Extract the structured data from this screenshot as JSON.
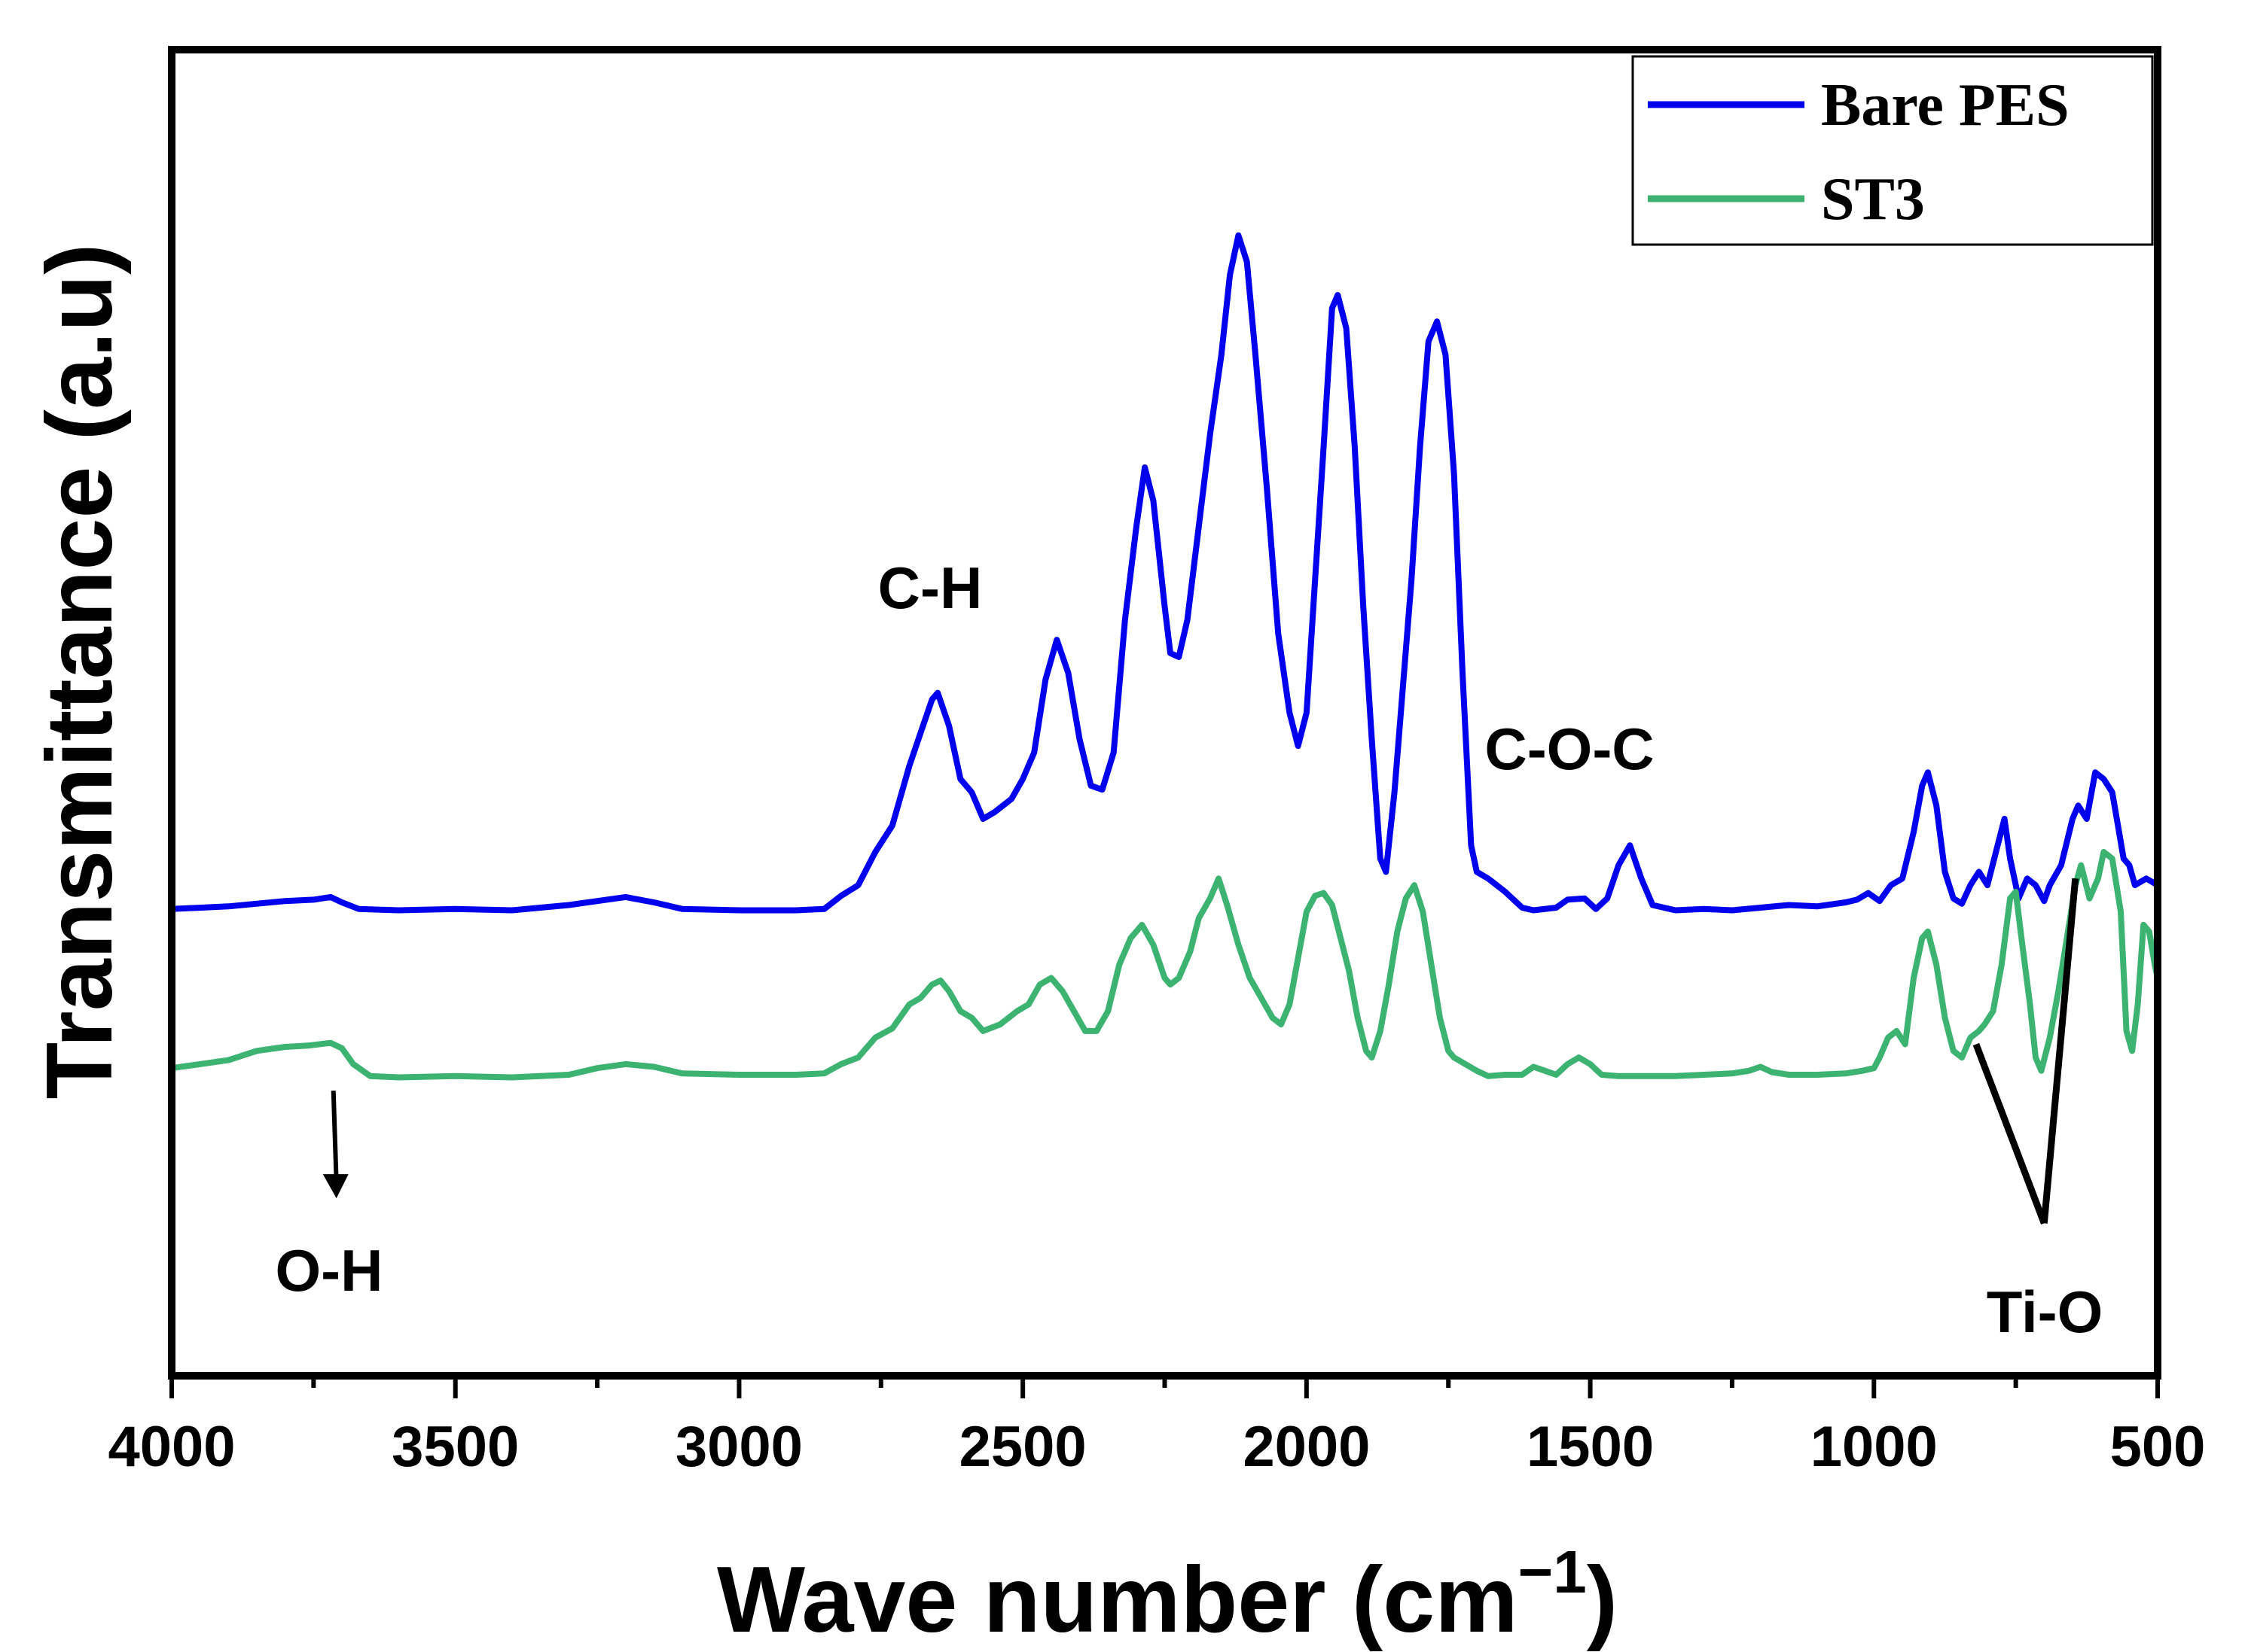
{
  "chart_data": {
    "type": "line",
    "title": "",
    "xlabel": "Wave number (cm",
    "xlabel_sup": "−1",
    "xlabel_close": ")",
    "ylabel": "Transmittance (a.u)",
    "xlim": [
      4000,
      500
    ],
    "ylim": [
      0,
      100
    ],
    "x_reversed": true,
    "y_ticks_shown": false,
    "xticks": [
      4000,
      3500,
      3000,
      2500,
      2000,
      1500,
      1000,
      500
    ],
    "xtick_labels": [
      "4000",
      "3500",
      "3000",
      "2500",
      "2000",
      "1500",
      "1000",
      "500"
    ],
    "legend_position": "top-right",
    "series": [
      {
        "name": "Bare PES",
        "color": "#0000ee",
        "points": [
          [
            4000,
            35.2
          ],
          [
            3900,
            35.4
          ],
          [
            3800,
            35.8
          ],
          [
            3750,
            35.9
          ],
          [
            3720,
            36.1
          ],
          [
            3700,
            35.7
          ],
          [
            3670,
            35.2
          ],
          [
            3600,
            35.1
          ],
          [
            3500,
            35.2
          ],
          [
            3400,
            35.1
          ],
          [
            3300,
            35.5
          ],
          [
            3250,
            35.8
          ],
          [
            3200,
            36.1
          ],
          [
            3150,
            35.7
          ],
          [
            3100,
            35.2
          ],
          [
            3000,
            35.1
          ],
          [
            2900,
            35.1
          ],
          [
            2850,
            35.2
          ],
          [
            2820,
            36.2
          ],
          [
            2790,
            37.0
          ],
          [
            2760,
            39.5
          ],
          [
            2730,
            41.5
          ],
          [
            2700,
            46.0
          ],
          [
            2680,
            48.5
          ],
          [
            2660,
            51.0
          ],
          [
            2650,
            51.5
          ],
          [
            2630,
            49.0
          ],
          [
            2610,
            45.0
          ],
          [
            2590,
            44.0
          ],
          [
            2570,
            42.0
          ],
          [
            2550,
            42.5
          ],
          [
            2520,
            43.5
          ],
          [
            2500,
            45.0
          ],
          [
            2480,
            47.0
          ],
          [
            2460,
            52.5
          ],
          [
            2440,
            55.5
          ],
          [
            2420,
            53.0
          ],
          [
            2400,
            48.0
          ],
          [
            2380,
            44.5
          ],
          [
            2360,
            44.2
          ],
          [
            2340,
            47.0
          ],
          [
            2320,
            57.0
          ],
          [
            2300,
            64.0
          ],
          [
            2285,
            68.5
          ],
          [
            2270,
            66.0
          ],
          [
            2250,
            58.0
          ],
          [
            2240,
            54.5
          ],
          [
            2225,
            54.2
          ],
          [
            2210,
            57.0
          ],
          [
            2190,
            64.0
          ],
          [
            2170,
            71.0
          ],
          [
            2150,
            77.0
          ],
          [
            2135,
            83.0
          ],
          [
            2120,
            86.0
          ],
          [
            2105,
            84.0
          ],
          [
            2090,
            77.0
          ],
          [
            2070,
            67.0
          ],
          [
            2050,
            56.0
          ],
          [
            2030,
            50.0
          ],
          [
            2015,
            47.5
          ],
          [
            2000,
            50.0
          ],
          [
            1985,
            60.0
          ],
          [
            1970,
            70.0
          ],
          [
            1955,
            80.5
          ],
          [
            1945,
            81.5
          ],
          [
            1930,
            79.0
          ],
          [
            1915,
            70.0
          ],
          [
            1900,
            58.0
          ],
          [
            1885,
            48.0
          ],
          [
            1870,
            39.0
          ],
          [
            1860,
            38.0
          ],
          [
            1845,
            44.0
          ],
          [
            1830,
            52.0
          ],
          [
            1815,
            60.0
          ],
          [
            1800,
            70.0
          ],
          [
            1785,
            78.0
          ],
          [
            1770,
            79.5
          ],
          [
            1755,
            77.0
          ],
          [
            1740,
            68.0
          ],
          [
            1725,
            53.0
          ],
          [
            1710,
            40.0
          ],
          [
            1700,
            38.0
          ],
          [
            1680,
            37.5
          ],
          [
            1650,
            36.5
          ],
          [
            1620,
            35.3
          ],
          [
            1600,
            35.1
          ],
          [
            1560,
            35.3
          ],
          [
            1540,
            35.9
          ],
          [
            1510,
            36.0
          ],
          [
            1490,
            35.2
          ],
          [
            1470,
            36.0
          ],
          [
            1450,
            38.5
          ],
          [
            1430,
            40.0
          ],
          [
            1410,
            37.5
          ],
          [
            1390,
            35.5
          ],
          [
            1350,
            35.1
          ],
          [
            1300,
            35.2
          ],
          [
            1250,
            35.1
          ],
          [
            1200,
            35.3
          ],
          [
            1150,
            35.5
          ],
          [
            1100,
            35.4
          ],
          [
            1050,
            35.7
          ],
          [
            1030,
            35.9
          ],
          [
            1010,
            36.4
          ],
          [
            990,
            35.8
          ],
          [
            970,
            37.0
          ],
          [
            950,
            37.5
          ],
          [
            930,
            41.0
          ],
          [
            915,
            44.5
          ],
          [
            905,
            45.5
          ],
          [
            890,
            43.0
          ],
          [
            875,
            38.0
          ],
          [
            860,
            36.0
          ],
          [
            845,
            35.6
          ],
          [
            830,
            37.0
          ],
          [
            815,
            38.0
          ],
          [
            800,
            37.0
          ],
          [
            785,
            39.5
          ],
          [
            770,
            42.0
          ],
          [
            760,
            39.0
          ],
          [
            745,
            36.0
          ],
          [
            730,
            37.5
          ],
          [
            715,
            37.0
          ],
          [
            700,
            35.8
          ],
          [
            690,
            37.0
          ],
          [
            670,
            38.5
          ],
          [
            650,
            42.0
          ],
          [
            640,
            43.0
          ],
          [
            625,
            42.0
          ],
          [
            610,
            45.5
          ],
          [
            595,
            45.0
          ],
          [
            580,
            44.0
          ],
          [
            570,
            41.5
          ],
          [
            560,
            39.0
          ],
          [
            550,
            38.5
          ],
          [
            540,
            37.0
          ],
          [
            520,
            37.5
          ],
          [
            500,
            37.0
          ]
        ]
      },
      {
        "name": "ST3",
        "color": "#3cb371",
        "points": [
          [
            4000,
            23.2
          ],
          [
            3950,
            23.5
          ],
          [
            3900,
            23.8
          ],
          [
            3850,
            24.5
          ],
          [
            3800,
            24.8
          ],
          [
            3760,
            24.9
          ],
          [
            3720,
            25.1
          ],
          [
            3700,
            24.7
          ],
          [
            3680,
            23.5
          ],
          [
            3650,
            22.6
          ],
          [
            3600,
            22.5
          ],
          [
            3500,
            22.6
          ],
          [
            3400,
            22.5
          ],
          [
            3300,
            22.7
          ],
          [
            3250,
            23.2
          ],
          [
            3200,
            23.5
          ],
          [
            3150,
            23.3
          ],
          [
            3100,
            22.8
          ],
          [
            3000,
            22.7
          ],
          [
            2900,
            22.7
          ],
          [
            2850,
            22.8
          ],
          [
            2820,
            23.5
          ],
          [
            2790,
            24.0
          ],
          [
            2760,
            25.5
          ],
          [
            2730,
            26.2
          ],
          [
            2700,
            28.0
          ],
          [
            2680,
            28.5
          ],
          [
            2660,
            29.5
          ],
          [
            2645,
            29.8
          ],
          [
            2630,
            29.0
          ],
          [
            2610,
            27.5
          ],
          [
            2590,
            27.0
          ],
          [
            2570,
            26.0
          ],
          [
            2540,
            26.5
          ],
          [
            2510,
            27.5
          ],
          [
            2490,
            28.0
          ],
          [
            2470,
            29.5
          ],
          [
            2450,
            30.0
          ],
          [
            2430,
            29.0
          ],
          [
            2410,
            27.5
          ],
          [
            2390,
            26.0
          ],
          [
            2370,
            26.0
          ],
          [
            2350,
            27.5
          ],
          [
            2330,
            31.0
          ],
          [
            2310,
            33.0
          ],
          [
            2290,
            34.0
          ],
          [
            2270,
            32.5
          ],
          [
            2250,
            30.0
          ],
          [
            2240,
            29.5
          ],
          [
            2225,
            30.0
          ],
          [
            2205,
            32.0
          ],
          [
            2190,
            34.5
          ],
          [
            2170,
            36.0
          ],
          [
            2155,
            37.5
          ],
          [
            2140,
            35.5
          ],
          [
            2120,
            32.5
          ],
          [
            2100,
            30.0
          ],
          [
            2080,
            28.5
          ],
          [
            2060,
            27.0
          ],
          [
            2045,
            26.5
          ],
          [
            2030,
            28.0
          ],
          [
            2015,
            31.5
          ],
          [
            2000,
            35.0
          ],
          [
            1985,
            36.2
          ],
          [
            1970,
            36.4
          ],
          [
            1955,
            35.5
          ],
          [
            1940,
            33.0
          ],
          [
            1925,
            30.5
          ],
          [
            1910,
            27.0
          ],
          [
            1895,
            24.5
          ],
          [
            1885,
            24.0
          ],
          [
            1870,
            26.0
          ],
          [
            1855,
            29.5
          ],
          [
            1840,
            33.5
          ],
          [
            1825,
            36.0
          ],
          [
            1810,
            37.0
          ],
          [
            1795,
            35.0
          ],
          [
            1780,
            31.0
          ],
          [
            1765,
            27.0
          ],
          [
            1750,
            24.5
          ],
          [
            1740,
            24.0
          ],
          [
            1720,
            23.5
          ],
          [
            1700,
            23.0
          ],
          [
            1680,
            22.6
          ],
          [
            1650,
            22.7
          ],
          [
            1620,
            22.7
          ],
          [
            1600,
            23.3
          ],
          [
            1580,
            23.0
          ],
          [
            1560,
            22.7
          ],
          [
            1540,
            23.5
          ],
          [
            1520,
            24.0
          ],
          [
            1500,
            23.5
          ],
          [
            1480,
            22.7
          ],
          [
            1450,
            22.6
          ],
          [
            1400,
            22.6
          ],
          [
            1350,
            22.6
          ],
          [
            1300,
            22.7
          ],
          [
            1250,
            22.8
          ],
          [
            1220,
            23.0
          ],
          [
            1200,
            23.3
          ],
          [
            1180,
            22.9
          ],
          [
            1150,
            22.7
          ],
          [
            1100,
            22.7
          ],
          [
            1050,
            22.8
          ],
          [
            1020,
            23.0
          ],
          [
            1000,
            23.2
          ],
          [
            990,
            24.0
          ],
          [
            975,
            25.5
          ],
          [
            960,
            26.0
          ],
          [
            945,
            25.0
          ],
          [
            930,
            30.0
          ],
          [
            915,
            33.0
          ],
          [
            905,
            33.5
          ],
          [
            890,
            31.0
          ],
          [
            875,
            27.0
          ],
          [
            860,
            24.5
          ],
          [
            845,
            24.0
          ],
          [
            830,
            25.5
          ],
          [
            815,
            26.0
          ],
          [
            805,
            26.5
          ],
          [
            790,
            27.5
          ],
          [
            775,
            31.0
          ],
          [
            760,
            36.0
          ],
          [
            750,
            36.5
          ],
          [
            740,
            33.0
          ],
          [
            725,
            28.0
          ],
          [
            715,
            24.0
          ],
          [
            705,
            23.0
          ],
          [
            690,
            25.5
          ],
          [
            675,
            29.0
          ],
          [
            660,
            33.0
          ],
          [
            645,
            37.0
          ],
          [
            635,
            38.5
          ],
          [
            620,
            36.0
          ],
          [
            605,
            37.5
          ],
          [
            595,
            39.5
          ],
          [
            580,
            39.0
          ],
          [
            565,
            35.0
          ],
          [
            555,
            26.0
          ],
          [
            545,
            24.5
          ],
          [
            535,
            28.0
          ],
          [
            525,
            34.0
          ],
          [
            515,
            33.5
          ],
          [
            505,
            31.0
          ],
          [
            500,
            30.0
          ]
        ]
      }
    ],
    "annotations": [
      {
        "text": "C-H",
        "x": 2680,
        "y": 54
      },
      {
        "text": "C-O-C",
        "x": 1530,
        "y": 42
      },
      {
        "text": "O-H",
        "x": 3725,
        "y": 10
      },
      {
        "text": "Ti-O",
        "x": 700,
        "y": 6
      }
    ]
  }
}
